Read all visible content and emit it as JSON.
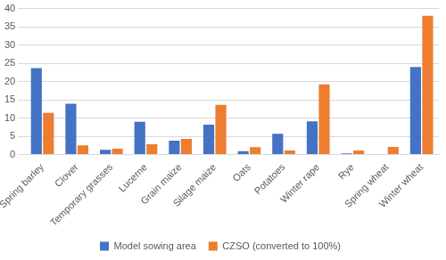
{
  "chart_data": {
    "type": "bar",
    "categories": [
      "Spring barley",
      "Clover",
      "Temporary grasses",
      "Lucerne",
      "Grain maize",
      "Silage maize",
      "Oats",
      "Potatoes",
      "Winter rape",
      "Rye",
      "Spring wheat",
      "Winter wheat"
    ],
    "series": [
      {
        "name": "Model sowing area",
        "color": "#4472c4",
        "values": [
          23.7,
          13.9,
          1.3,
          9.0,
          3.8,
          8.2,
          0.9,
          5.7,
          9.1,
          0.3,
          0,
          24.0
        ]
      },
      {
        "name": "CZSO (converted to 100%)",
        "color": "#ed7d31",
        "values": [
          11.4,
          2.5,
          1.6,
          2.8,
          4.3,
          13.6,
          2.0,
          1.1,
          19.2,
          1.1,
          2.1,
          38.0
        ]
      }
    ],
    "ylim": [
      0,
      40
    ],
    "yticks": [
      0,
      5,
      10,
      15,
      20,
      25,
      30,
      35,
      40
    ],
    "grid": true,
    "legend": "bottom"
  }
}
